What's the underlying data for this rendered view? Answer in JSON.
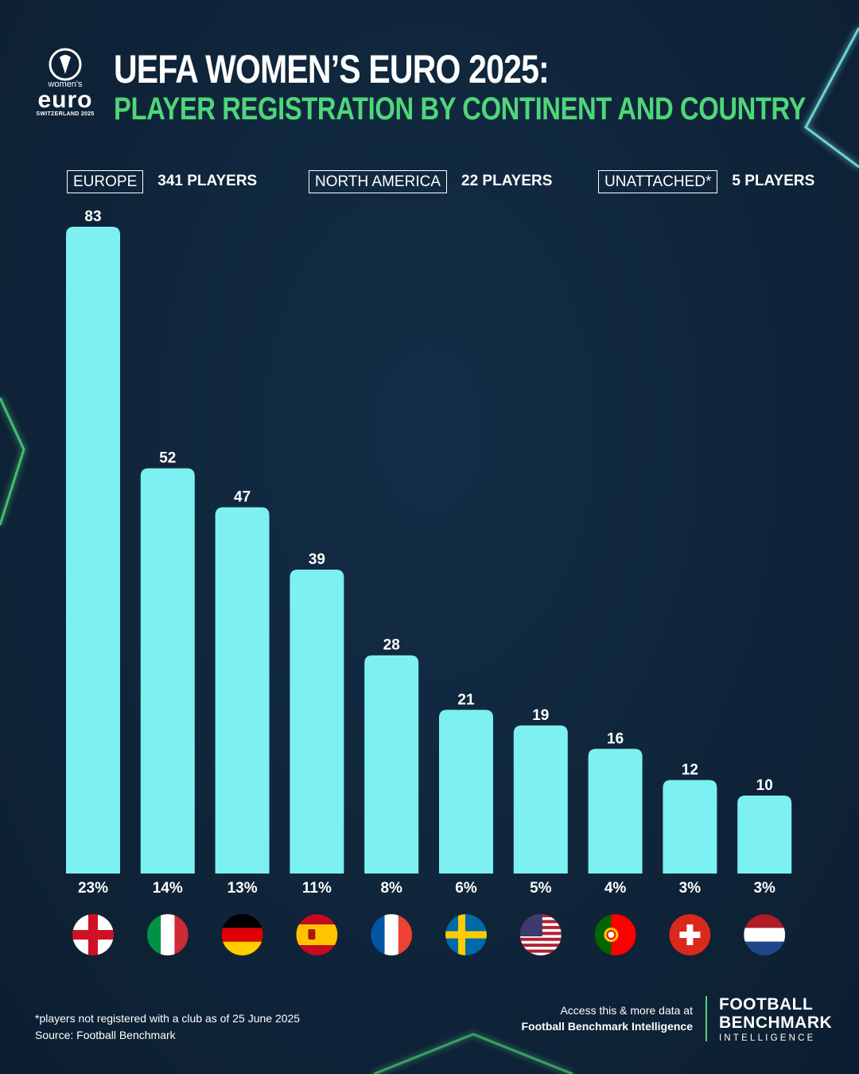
{
  "logo": {
    "mark": "uefa-womens-euro-logo",
    "women": "women's",
    "euro": "euro",
    "sub": "SWITZERLAND 2025"
  },
  "title": "UEFA WOMEN’S EURO 2025:",
  "subtitle": "PLAYER REGISTRATION BY CONTINENT AND COUNTRY",
  "continents": [
    {
      "name": "EUROPE",
      "count": "341 PLAYERS"
    },
    {
      "name": "NORTH AMERICA",
      "count": "22 PLAYERS"
    },
    {
      "name": "UNATTACHED*",
      "count": "5 PLAYERS"
    }
  ],
  "chart_data": {
    "type": "bar",
    "categories": [
      "England",
      "Italy",
      "Germany",
      "Spain",
      "France",
      "Sweden",
      "USA",
      "Portugal",
      "Switzerland",
      "Netherlands"
    ],
    "values": [
      83,
      52,
      47,
      39,
      28,
      21,
      19,
      16,
      12,
      10
    ],
    "percent_labels": [
      "23%",
      "14%",
      "13%",
      "11%",
      "8%",
      "6%",
      "5%",
      "4%",
      "3%",
      "3%"
    ],
    "flags": [
      "england-flag-icon",
      "italy-flag-icon",
      "germany-flag-icon",
      "spain-flag-icon",
      "france-flag-icon",
      "sweden-flag-icon",
      "usa-flag-icon",
      "portugal-flag-icon",
      "switzerland-flag-icon",
      "netherlands-flag-icon"
    ],
    "ylim": [
      0,
      83
    ],
    "grid": false,
    "bar_color": "#7df0f2"
  },
  "footnote": {
    "note": "*players not registered with a club as of 25 June 2025",
    "source": "Source: Football Benchmark"
  },
  "access": {
    "line1": "Access this & more data at",
    "line2": "Football Benchmark Intelligence"
  },
  "brand": {
    "line1": "FOOTBALL",
    "line2": "BENCHMARK",
    "line3": "INTELLIGENCE"
  },
  "colors": {
    "background": "#0f2439",
    "accent_green": "#4fd67a",
    "bar": "#7df0f2"
  }
}
